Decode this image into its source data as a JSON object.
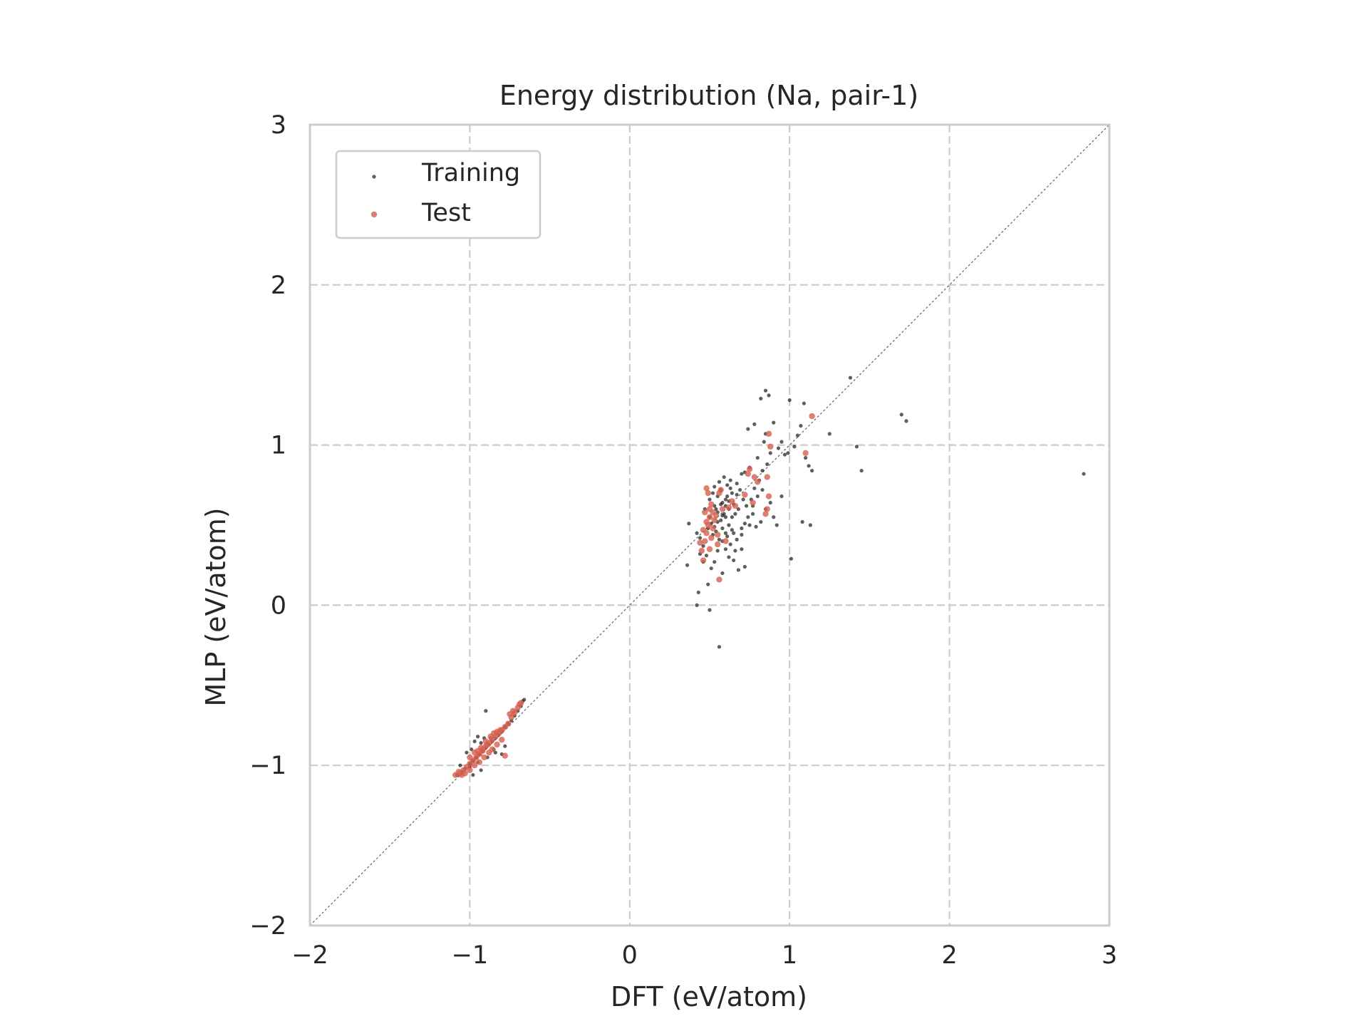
{
  "chart_data": {
    "type": "scatter",
    "title": "Energy distribution (Na, pair-1)",
    "xlabel": "DFT (eV/atom)",
    "ylabel": "MLP (eV/atom)",
    "xlim": [
      -2,
      3
    ],
    "ylim": [
      -2,
      3
    ],
    "xticks": [
      -2,
      -1,
      0,
      1,
      2,
      3
    ],
    "yticks": [
      -2,
      -1,
      0,
      1,
      2,
      3
    ],
    "xtick_labels": [
      "−2",
      "−1",
      "0",
      "1",
      "2",
      "3"
    ],
    "ytick_labels": [
      "−2",
      "−1",
      "0",
      "1",
      "2",
      "3"
    ],
    "grid": true,
    "parity_line": true,
    "legend": {
      "position": "top-left",
      "entries": [
        "Training",
        "Test"
      ]
    },
    "series": [
      {
        "name": "Training",
        "color": "#1a1a1a",
        "points": [
          [
            -1.08,
            -1.06
          ],
          [
            -1.05,
            -1.04
          ],
          [
            -1.03,
            -1.02
          ],
          [
            -1.0,
            -0.99
          ],
          [
            -0.98,
            -0.97
          ],
          [
            -0.96,
            -0.95
          ],
          [
            -0.94,
            -0.93
          ],
          [
            -0.92,
            -0.91
          ],
          [
            -0.9,
            -0.89
          ],
          [
            -0.88,
            -0.87
          ],
          [
            -0.86,
            -0.85
          ],
          [
            -0.84,
            -0.83
          ],
          [
            -0.82,
            -0.81
          ],
          [
            -0.8,
            -0.79
          ],
          [
            -0.78,
            -0.76
          ],
          [
            -0.76,
            -0.74
          ],
          [
            -0.74,
            -0.72
          ],
          [
            -0.72,
            -0.69
          ],
          [
            -0.7,
            -0.66
          ],
          [
            -0.68,
            -0.63
          ],
          [
            -0.67,
            -0.6
          ],
          [
            -0.66,
            -0.59
          ],
          [
            -1.02,
            -0.92
          ],
          [
            -0.97,
            -0.85
          ],
          [
            -0.95,
            -0.82
          ],
          [
            -0.91,
            -0.83
          ],
          [
            -0.9,
            -0.66
          ],
          [
            -0.87,
            -0.83
          ],
          [
            -0.84,
            -0.92
          ],
          [
            -0.8,
            -0.93
          ],
          [
            -0.78,
            -0.88
          ],
          [
            -0.98,
            -1.06
          ],
          [
            -0.93,
            -1.03
          ],
          [
            -1.0,
            -1.01
          ],
          [
            -0.95,
            -0.98
          ],
          [
            -0.89,
            -0.95
          ],
          [
            -0.85,
            -0.9
          ],
          [
            -1.06,
            -1.0
          ],
          [
            -0.99,
            -0.9
          ],
          [
            -0.93,
            -0.86
          ],
          [
            0.37,
            0.51
          ],
          [
            0.42,
            0.45
          ],
          [
            0.44,
            0.32
          ],
          [
            0.36,
            0.25
          ],
          [
            0.43,
            0.08
          ],
          [
            0.42,
            0.0
          ],
          [
            0.5,
            -0.03
          ],
          [
            0.56,
            -0.26
          ],
          [
            0.47,
            0.6
          ],
          [
            0.5,
            0.66
          ],
          [
            0.52,
            0.7
          ],
          [
            0.53,
            0.62
          ],
          [
            0.55,
            0.68
          ],
          [
            0.57,
            0.72
          ],
          [
            0.58,
            0.64
          ],
          [
            0.6,
            0.66
          ],
          [
            0.61,
            0.75
          ],
          [
            0.63,
            0.78
          ],
          [
            0.64,
            0.7
          ],
          [
            0.65,
            0.63
          ],
          [
            0.67,
            0.76
          ],
          [
            0.7,
            0.82
          ],
          [
            0.72,
            0.83
          ],
          [
            0.75,
            0.86
          ],
          [
            0.55,
            0.58
          ],
          [
            0.57,
            0.53
          ],
          [
            0.6,
            0.55
          ],
          [
            0.62,
            0.5
          ],
          [
            0.65,
            0.45
          ],
          [
            0.66,
            0.57
          ],
          [
            0.68,
            0.6
          ],
          [
            0.7,
            0.48
          ],
          [
            0.72,
            0.51
          ],
          [
            0.74,
            0.55
          ],
          [
            0.75,
            0.5
          ],
          [
            0.77,
            0.57
          ],
          [
            0.79,
            0.49
          ],
          [
            0.82,
            0.52
          ],
          [
            0.85,
            0.6
          ],
          [
            0.88,
            0.64
          ],
          [
            0.9,
            0.55
          ],
          [
            0.92,
            0.5
          ],
          [
            0.58,
            0.4
          ],
          [
            0.6,
            0.35
          ],
          [
            0.62,
            0.3
          ],
          [
            0.65,
            0.28
          ],
          [
            0.68,
            0.22
          ],
          [
            0.7,
            0.35
          ],
          [
            0.72,
            0.24
          ],
          [
            0.6,
            0.45
          ],
          [
            0.54,
            0.46
          ],
          [
            0.52,
            0.44
          ],
          [
            0.56,
            0.41
          ],
          [
            0.48,
            0.31
          ],
          [
            0.46,
            0.27
          ],
          [
            0.58,
            0.2
          ],
          [
            0.63,
            0.38
          ],
          [
            0.66,
            0.34
          ],
          [
            0.73,
            0.62
          ],
          [
            0.76,
            0.66
          ],
          [
            0.8,
            0.68
          ],
          [
            0.83,
            0.72
          ],
          [
            0.86,
            0.88
          ],
          [
            0.88,
            0.95
          ],
          [
            0.84,
            1.02
          ],
          [
            0.85,
            1.07
          ],
          [
            0.78,
            1.13
          ],
          [
            0.74,
            1.1
          ],
          [
            0.82,
            1.29
          ],
          [
            0.85,
            1.34
          ],
          [
            0.87,
            1.31
          ],
          [
            0.9,
            1.14
          ],
          [
            0.93,
            0.98
          ],
          [
            0.95,
            1.02
          ],
          [
            0.97,
            0.94
          ],
          [
            0.99,
            0.95
          ],
          [
            1.0,
            1.28
          ],
          [
            1.03,
            0.99
          ],
          [
            1.05,
            1.06
          ],
          [
            1.07,
            1.12
          ],
          [
            1.09,
            1.26
          ],
          [
            1.1,
            0.92
          ],
          [
            1.12,
            0.87
          ],
          [
            1.14,
            0.84
          ],
          [
            1.13,
            0.5
          ],
          [
            1.08,
            0.52
          ],
          [
            0.95,
            0.68
          ],
          [
            1.01,
            0.29
          ],
          [
            1.25,
            1.07
          ],
          [
            1.38,
            1.42
          ],
          [
            1.42,
            0.99
          ],
          [
            1.45,
            0.84
          ],
          [
            1.7,
            1.19
          ],
          [
            1.73,
            1.15
          ],
          [
            2.84,
            0.82
          ],
          [
            0.53,
            0.74
          ],
          [
            0.56,
            0.77
          ],
          [
            0.59,
            0.8
          ],
          [
            0.61,
            0.68
          ],
          [
            0.63,
            0.73
          ],
          [
            0.5,
            0.55
          ],
          [
            0.54,
            0.6
          ],
          [
            0.57,
            0.63
          ],
          [
            0.59,
            0.57
          ],
          [
            0.62,
            0.6
          ],
          [
            0.64,
            0.55
          ],
          [
            0.67,
            0.69
          ],
          [
            0.69,
            0.72
          ],
          [
            0.71,
            0.66
          ],
          [
            0.44,
            0.42
          ],
          [
            0.46,
            0.37
          ],
          [
            0.49,
            0.48
          ],
          [
            0.51,
            0.51
          ],
          [
            0.53,
            0.49
          ],
          [
            0.55,
            0.52
          ],
          [
            0.58,
            0.48
          ],
          [
            0.61,
            0.43
          ],
          [
            0.64,
            0.47
          ],
          [
            0.67,
            0.41
          ],
          [
            0.7,
            0.44
          ],
          [
            0.53,
            0.27
          ],
          [
            0.55,
            0.34
          ],
          [
            0.51,
            0.23
          ],
          [
            0.49,
            0.13
          ],
          [
            0.58,
            0.56
          ],
          [
            0.6,
            0.62
          ],
          [
            0.62,
            0.65
          ],
          [
            0.78,
            0.73
          ],
          [
            0.81,
            0.78
          ],
          [
            0.83,
            0.84
          ],
          [
            0.8,
            0.92
          ],
          [
            0.77,
            0.62
          ]
        ]
      },
      {
        "name": "Test",
        "color": "#d65f4f",
        "points": [
          [
            -1.09,
            -1.06
          ],
          [
            -1.06,
            -1.05
          ],
          [
            -1.04,
            -1.03
          ],
          [
            -1.02,
            -1.01
          ],
          [
            -1.0,
            -0.99
          ],
          [
            -0.98,
            -0.97
          ],
          [
            -0.96,
            -0.95
          ],
          [
            -0.94,
            -0.93
          ],
          [
            -0.92,
            -0.91
          ],
          [
            -0.9,
            -0.88
          ],
          [
            -0.88,
            -0.86
          ],
          [
            -0.86,
            -0.84
          ],
          [
            -0.84,
            -0.82
          ],
          [
            -0.82,
            -0.8
          ],
          [
            -0.8,
            -0.78
          ],
          [
            -0.78,
            -0.76
          ],
          [
            -0.76,
            -0.74
          ],
          [
            -0.74,
            -0.7
          ],
          [
            -0.72,
            -0.67
          ],
          [
            -0.7,
            -0.64
          ],
          [
            -0.69,
            -0.62
          ],
          [
            -0.68,
            -0.61
          ],
          [
            -0.73,
            -0.66
          ],
          [
            -0.75,
            -0.68
          ],
          [
            -1.0,
            -0.95
          ],
          [
            -0.97,
            -0.92
          ],
          [
            -0.93,
            -0.89
          ],
          [
            -0.9,
            -0.85
          ],
          [
            -0.87,
            -0.82
          ],
          [
            -0.85,
            -0.8
          ],
          [
            -0.83,
            -0.79
          ],
          [
            -0.81,
            -0.78
          ],
          [
            -1.03,
            -1.05
          ],
          [
            -1.0,
            -1.03
          ],
          [
            -0.97,
            -1.0
          ],
          [
            -0.94,
            -0.98
          ],
          [
            -0.91,
            -0.95
          ],
          [
            -0.88,
            -0.92
          ],
          [
            -0.86,
            -0.9
          ],
          [
            -0.83,
            -0.87
          ],
          [
            -0.8,
            -0.84
          ],
          [
            -0.78,
            -0.94
          ],
          [
            -0.95,
            -0.91
          ],
          [
            -0.92,
            -0.9
          ],
          [
            -0.89,
            -0.87
          ],
          [
            -1.07,
            -1.04
          ],
          [
            -1.05,
            -1.06
          ],
          [
            0.45,
            0.34
          ],
          [
            0.46,
            0.28
          ],
          [
            0.47,
            0.4
          ],
          [
            0.48,
            0.45
          ],
          [
            0.49,
            0.5
          ],
          [
            0.5,
            0.55
          ],
          [
            0.5,
            0.6
          ],
          [
            0.51,
            0.63
          ],
          [
            0.52,
            0.58
          ],
          [
            0.52,
            0.48
          ],
          [
            0.53,
            0.53
          ],
          [
            0.48,
            0.52
          ],
          [
            0.47,
            0.58
          ],
          [
            0.49,
            0.7
          ],
          [
            0.48,
            0.73
          ],
          [
            0.56,
            0.7
          ],
          [
            0.57,
            0.72
          ],
          [
            0.58,
            0.6
          ],
          [
            0.62,
            0.61
          ],
          [
            0.64,
            0.65
          ],
          [
            0.55,
            0.44
          ],
          [
            0.55,
            0.38
          ],
          [
            0.5,
            0.35
          ],
          [
            0.56,
            0.16
          ],
          [
            0.6,
            0.4
          ],
          [
            0.66,
            0.62
          ],
          [
            0.72,
            0.69
          ],
          [
            0.74,
            0.82
          ],
          [
            0.75,
            0.85
          ],
          [
            0.78,
            0.8
          ],
          [
            0.8,
            0.77
          ],
          [
            0.77,
            0.64
          ],
          [
            0.85,
            0.57
          ],
          [
            0.86,
            0.6
          ],
          [
            0.87,
            0.68
          ],
          [
            0.86,
            0.8
          ],
          [
            0.88,
            0.99
          ],
          [
            0.87,
            1.07
          ],
          [
            1.1,
            0.95
          ],
          [
            1.14,
            1.18
          ],
          [
            0.54,
            0.56
          ],
          [
            0.51,
            0.42
          ],
          [
            0.46,
            0.47
          ],
          [
            0.44,
            0.39
          ]
        ]
      }
    ]
  }
}
